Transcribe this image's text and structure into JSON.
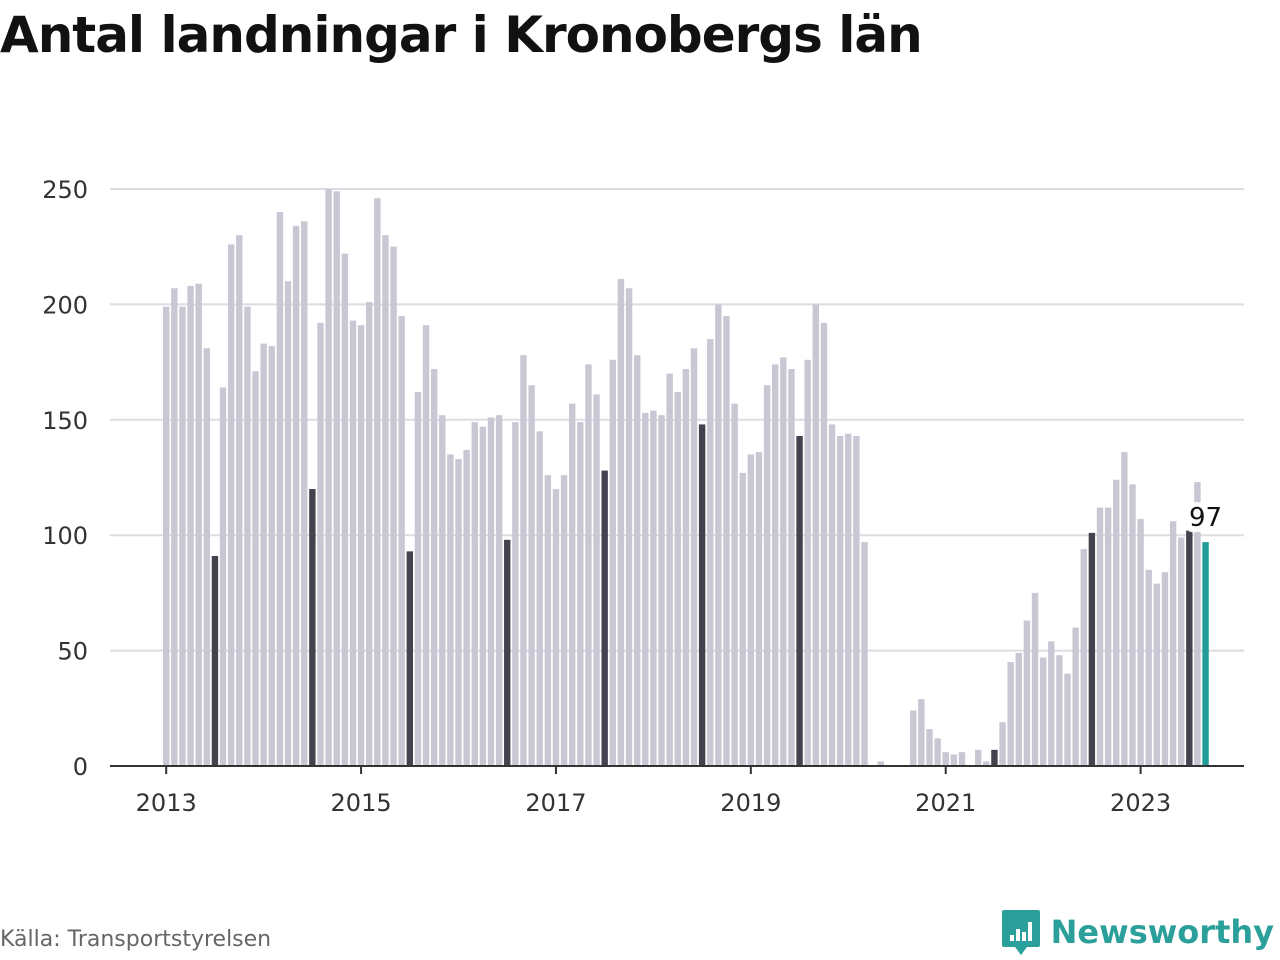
{
  "title": "Antal landningar i Kronobergs län",
  "source": "Källa: Transportstyrelsen",
  "brand": {
    "name": "Newsworthy",
    "icon": "newsworthy-logo-icon"
  },
  "colors": {
    "bar": "#c8c7d4",
    "highlight": "#44424f",
    "latest": "#1f9c96",
    "grid": "#dcdce2",
    "axis": "#333333",
    "brand": "#2b9f9a"
  },
  "chart_data": {
    "type": "bar",
    "title": "Antal landningar i Kronobergs län",
    "xlabel": "",
    "ylabel": "",
    "ylim": [
      0,
      250
    ],
    "yticks": [
      "0",
      "50",
      "100",
      "150",
      "200",
      "250"
    ],
    "xticks": [
      "2013",
      "2015",
      "2017",
      "2019",
      "2021",
      "2023"
    ],
    "grid": true,
    "start": "2013-01",
    "highlight_month": "07",
    "latest_label": "97",
    "series": [
      {
        "values": [
          199,
          207,
          199,
          208,
          209,
          181,
          91,
          164,
          226,
          230,
          199,
          171,
          183,
          182,
          240,
          210,
          234,
          236,
          120,
          192,
          250,
          249,
          222,
          193,
          191,
          201,
          246,
          230,
          225,
          195,
          93,
          162,
          191,
          172,
          152,
          135,
          133,
          137,
          149,
          147,
          151,
          152,
          98,
          149,
          178,
          165,
          145,
          126,
          120,
          126,
          157,
          149,
          174,
          161,
          128,
          176,
          211,
          207,
          178,
          153,
          154,
          152,
          170,
          162,
          172,
          181,
          148,
          185,
          200,
          195,
          157,
          127,
          135,
          136,
          165,
          174,
          177,
          172,
          143,
          176,
          200,
          192,
          148,
          143,
          144,
          143,
          97,
          0,
          2,
          0,
          0,
          0,
          24,
          29,
          16,
          12,
          6,
          5,
          6,
          0,
          7,
          2,
          7,
          19,
          45,
          49,
          63,
          75,
          47,
          54,
          48,
          40,
          60,
          94,
          101,
          112,
          112,
          124,
          136,
          122,
          107,
          85,
          79,
          84,
          106,
          99,
          102,
          123,
          97
        ]
      }
    ]
  }
}
